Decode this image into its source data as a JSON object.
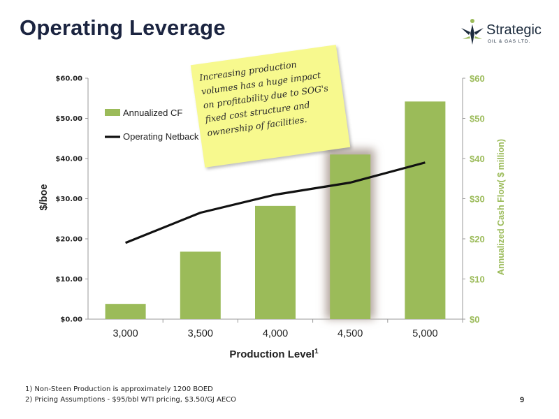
{
  "slide": {
    "title": "Operating Leverage",
    "page_number": "9"
  },
  "logo": {
    "name": "Strategic",
    "subtitle": "OIL & GAS LTD."
  },
  "callout": {
    "text": "Increasing production volumes has a huge impact on profitability due to SOG's fixed cost structure and ownership of facilities."
  },
  "footnotes": [
    "1) Non-Steen Production is approximately 1200 BOED",
    "2) Pricing Assumptions - $95/bbl WTI pricing, $3.50/GJ AECO"
  ],
  "colors": {
    "bar": "#9bbb59",
    "line": "#111111",
    "right_axis": "#9bbb59",
    "highlight_shadow": "#b5a8a0"
  },
  "chart_data": {
    "type": "bar",
    "categories": [
      "3,000",
      "3,500",
      "4,000",
      "4,500",
      "5,000"
    ],
    "xlabel": "Production Level",
    "xlabel_superscript": "1",
    "ylabel": "$/boe",
    "y2label": "Annualized Cash Flow( $ million)",
    "ylim": [
      0,
      60
    ],
    "y2lim": [
      0,
      60
    ],
    "yticks": [
      "$0.00",
      "$10.00",
      "$20.00",
      "$30.00",
      "$40.00",
      "$50.00",
      "$60.00"
    ],
    "y2ticks": [
      "$0",
      "$10",
      "$20",
      "$30",
      "$40",
      "$50",
      "$60"
    ],
    "highlighted_category": "4,500",
    "legend_position": "top-left",
    "series": [
      {
        "name": "Annualized CF",
        "type": "bar",
        "axis": "right",
        "values": [
          3.8,
          16.8,
          28.2,
          41.0,
          54.2
        ]
      },
      {
        "name": "Operating Netback",
        "type": "line",
        "axis": "left",
        "values": [
          19.0,
          26.5,
          31.0,
          34.0,
          39.0
        ]
      }
    ]
  }
}
